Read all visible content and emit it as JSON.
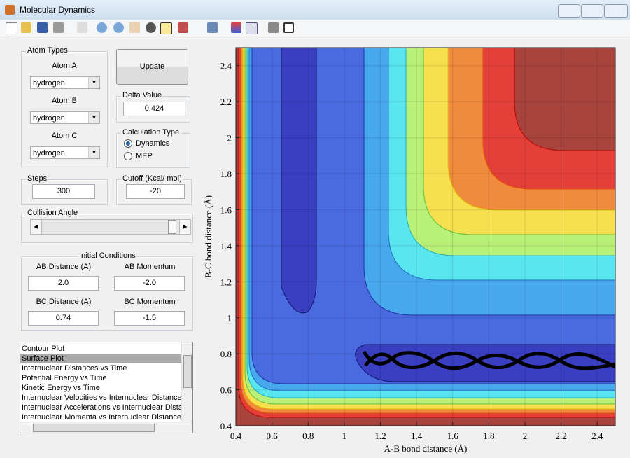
{
  "window": {
    "title": "Molecular Dynamics"
  },
  "atom_types": {
    "title": "Atom Types",
    "atoms": [
      {
        "label": "Atom A",
        "value": "hydrogen"
      },
      {
        "label": "Atom B",
        "value": "hydrogen"
      },
      {
        "label": "Atom C",
        "value": "hydrogen"
      }
    ]
  },
  "update_button": "Update",
  "delta_value": {
    "title": "Delta Value",
    "value": "0.424"
  },
  "calculation_type": {
    "title": "Calculation Type",
    "options": [
      "Dynamics",
      "MEP"
    ],
    "selected_index": 0
  },
  "steps": {
    "title": "Steps",
    "value": "300"
  },
  "cutoff": {
    "title": "Cutoff (Kcal/ mol)",
    "value": "-20"
  },
  "collision_angle": {
    "title": "Collision Angle"
  },
  "initial_conditions": {
    "title": "Initial Conditions",
    "fields": [
      {
        "label": "AB Distance (A)",
        "value": "2.0"
      },
      {
        "label": "AB Momentum",
        "value": "-2.0"
      },
      {
        "label": "BC Distance (A)",
        "value": "0.74"
      },
      {
        "label": "BC Momentum",
        "value": "-1.5"
      }
    ]
  },
  "plot_list": {
    "items": [
      "Contour Plot",
      "Surface Plot",
      "Internuclear Distances vs Time",
      "Potential Energy vs Time",
      "Kinetic Energy vs Time",
      "Internuclear Velocities vs Internuclear Distance",
      "Internuclear Accelerations vs Internuclear Dista",
      "Internuclear Momenta vs Internuclear Distance"
    ],
    "selected_index": 1
  },
  "plot": {
    "xlabel": "A-B bond distance (Å)",
    "ylabel": "B-C bond distance (Å)",
    "xlim": [
      0.4,
      2.5
    ],
    "ylim": [
      0.4,
      2.5
    ],
    "xticks": [
      0.4,
      0.6,
      0.8,
      1,
      1.2,
      1.4,
      1.6,
      1.8,
      2,
      2.2,
      2.4
    ],
    "yticks": [
      0.4,
      0.6,
      0.8,
      1,
      1.2,
      1.4,
      1.6,
      1.8,
      2,
      2.2,
      2.4
    ],
    "grid": true
  }
}
